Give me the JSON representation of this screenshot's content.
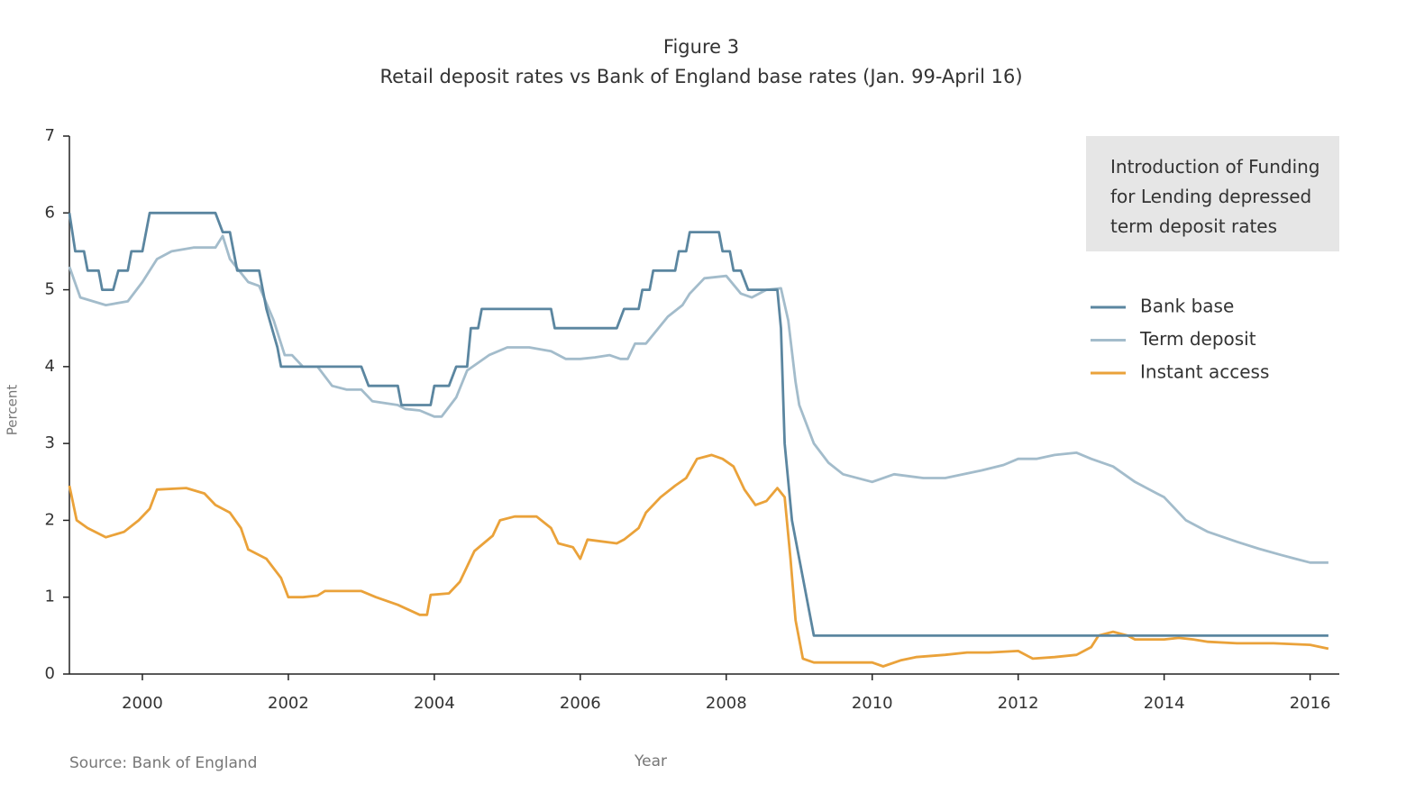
{
  "chart_data": {
    "type": "line",
    "title": "Figure 3",
    "subtitle": "Retail deposit rates vs Bank of England base rates (Jan. 99-April 16)",
    "xlabel": "Year",
    "ylabel": "Percent",
    "source": "Source: Bank of England",
    "annotation": "Introduction of Funding for Lending depressed term deposit rates",
    "xlim": [
      1999,
      2016.4
    ],
    "xticks": [
      2000,
      2002,
      2004,
      2006,
      2008,
      2010,
      2012,
      2014,
      2016
    ],
    "ylim": [
      0,
      7
    ],
    "yticks": [
      0,
      1,
      2,
      3,
      4,
      5,
      6,
      7
    ],
    "grid": false,
    "legend": "right",
    "series": [
      {
        "name": "Bank base",
        "color": "#5b86a0",
        "x": [
          1999.0,
          1999.08,
          1999.2,
          1999.25,
          1999.4,
          1999.45,
          1999.6,
          1999.67,
          1999.8,
          1999.85,
          2000.0,
          2000.1,
          2001.0,
          2001.1,
          2001.2,
          2001.3,
          2001.6,
          2001.7,
          2001.85,
          2001.9,
          2003.0,
          2003.1,
          2003.5,
          2003.55,
          2003.95,
          2004.0,
          2004.2,
          2004.3,
          2004.45,
          2004.5,
          2004.6,
          2004.65,
          2005.6,
          2005.65,
          2006.5,
          2006.6,
          2006.8,
          2006.85,
          2006.95,
          2007.0,
          2007.3,
          2007.35,
          2007.45,
          2007.5,
          2007.9,
          2007.95,
          2008.05,
          2008.1,
          2008.2,
          2008.3,
          2008.7,
          2008.75,
          2008.8,
          2008.9,
          2009.0,
          2009.1,
          2009.2,
          2016.25
        ],
        "values": [
          6.0,
          5.5,
          5.5,
          5.25,
          5.25,
          5.0,
          5.0,
          5.25,
          5.25,
          5.5,
          5.5,
          6.0,
          6.0,
          5.75,
          5.75,
          5.25,
          5.25,
          4.75,
          4.25,
          4.0,
          4.0,
          3.75,
          3.75,
          3.5,
          3.5,
          3.75,
          3.75,
          4.0,
          4.0,
          4.5,
          4.5,
          4.75,
          4.75,
          4.5,
          4.5,
          4.75,
          4.75,
          5.0,
          5.0,
          5.25,
          5.25,
          5.5,
          5.5,
          5.75,
          5.75,
          5.5,
          5.5,
          5.25,
          5.25,
          5.0,
          5.0,
          4.5,
          3.0,
          2.0,
          1.5,
          1.0,
          0.5,
          0.5
        ]
      },
      {
        "name": "Term deposit",
        "color": "#a3bccb",
        "x": [
          1999.0,
          1999.15,
          1999.5,
          1999.8,
          2000.0,
          2000.2,
          2000.4,
          2000.7,
          2001.0,
          2001.1,
          2001.2,
          2001.45,
          2001.6,
          2001.8,
          2001.95,
          2002.05,
          2002.2,
          2002.4,
          2002.6,
          2002.8,
          2003.0,
          2003.15,
          2003.5,
          2003.6,
          2003.8,
          2004.0,
          2004.1,
          2004.3,
          2004.45,
          2004.6,
          2004.75,
          2005.0,
          2005.3,
          2005.6,
          2005.8,
          2006.0,
          2006.2,
          2006.4,
          2006.55,
          2006.65,
          2006.75,
          2006.9,
          2007.2,
          2007.4,
          2007.5,
          2007.7,
          2008.0,
          2008.2,
          2008.35,
          2008.55,
          2008.75,
          2008.85,
          2008.95,
          2009.0,
          2009.2,
          2009.4,
          2009.6,
          2010.0,
          2010.3,
          2010.7,
          2011.0,
          2011.5,
          2011.8,
          2012.0,
          2012.25,
          2012.5,
          2012.8,
          2013.0,
          2013.3,
          2013.6,
          2013.9,
          2014.0,
          2014.3,
          2014.6,
          2015.0,
          2015.3,
          2015.6,
          2015.8,
          2016.0,
          2016.25
        ],
        "values": [
          5.3,
          4.9,
          4.8,
          4.85,
          5.1,
          5.4,
          5.5,
          5.55,
          5.55,
          5.7,
          5.4,
          5.1,
          5.05,
          4.6,
          4.15,
          4.15,
          4.0,
          4.0,
          3.75,
          3.7,
          3.7,
          3.55,
          3.5,
          3.45,
          3.43,
          3.35,
          3.35,
          3.6,
          3.95,
          4.05,
          4.15,
          4.25,
          4.25,
          4.2,
          4.1,
          4.1,
          4.12,
          4.15,
          4.1,
          4.1,
          4.3,
          4.3,
          4.65,
          4.8,
          4.95,
          5.15,
          5.18,
          4.95,
          4.9,
          5.0,
          5.02,
          4.6,
          3.8,
          3.5,
          3.0,
          2.75,
          2.6,
          2.5,
          2.6,
          2.55,
          2.55,
          2.65,
          2.72,
          2.8,
          2.8,
          2.85,
          2.88,
          2.8,
          2.7,
          2.5,
          2.35,
          2.3,
          2.0,
          1.85,
          1.72,
          1.63,
          1.55,
          1.5,
          1.45,
          1.45
        ]
      },
      {
        "name": "Instant access",
        "color": "#eaa23a",
        "x": [
          1999.0,
          1999.1,
          1999.25,
          1999.5,
          1999.75,
          1999.95,
          2000.1,
          2000.2,
          2000.6,
          2000.85,
          2001.0,
          2001.2,
          2001.35,
          2001.45,
          2001.7,
          2001.9,
          2002.0,
          2002.2,
          2002.4,
          2002.5,
          2003.0,
          2003.2,
          2003.5,
          2003.8,
          2003.9,
          2003.95,
          2004.2,
          2004.35,
          2004.55,
          2004.8,
          2004.9,
          2005.1,
          2005.4,
          2005.6,
          2005.7,
          2005.9,
          2006.0,
          2006.1,
          2006.5,
          2006.6,
          2006.8,
          2006.9,
          2007.1,
          2007.3,
          2007.45,
          2007.6,
          2007.8,
          2007.95,
          2008.1,
          2008.25,
          2008.4,
          2008.55,
          2008.7,
          2008.8,
          2008.88,
          2008.95,
          2009.05,
          2009.2,
          2009.4,
          2010.0,
          2010.15,
          2010.4,
          2010.6,
          2011.0,
          2011.3,
          2011.6,
          2012.0,
          2012.2,
          2012.5,
          2012.8,
          2013.0,
          2013.1,
          2013.3,
          2013.5,
          2013.6,
          2014.0,
          2014.2,
          2014.4,
          2014.6,
          2015.0,
          2015.5,
          2016.0,
          2016.25
        ],
        "values": [
          2.45,
          2.0,
          1.9,
          1.78,
          1.85,
          2.0,
          2.15,
          2.4,
          2.42,
          2.35,
          2.2,
          2.1,
          1.9,
          1.62,
          1.5,
          1.25,
          1.0,
          1.0,
          1.02,
          1.08,
          1.08,
          1.0,
          0.9,
          0.77,
          0.77,
          1.03,
          1.05,
          1.2,
          1.6,
          1.8,
          2.0,
          2.05,
          2.05,
          1.9,
          1.7,
          1.65,
          1.5,
          1.75,
          1.7,
          1.75,
          1.9,
          2.1,
          2.3,
          2.45,
          2.55,
          2.8,
          2.85,
          2.8,
          2.7,
          2.4,
          2.2,
          2.25,
          2.42,
          2.3,
          1.5,
          0.7,
          0.2,
          0.15,
          0.15,
          0.15,
          0.1,
          0.18,
          0.22,
          0.25,
          0.28,
          0.28,
          0.3,
          0.2,
          0.22,
          0.25,
          0.35,
          0.5,
          0.55,
          0.5,
          0.45,
          0.45,
          0.47,
          0.45,
          0.42,
          0.4,
          0.4,
          0.38,
          0.33
        ]
      }
    ]
  }
}
